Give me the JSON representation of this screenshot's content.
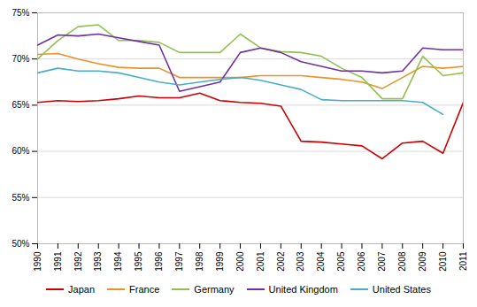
{
  "chart_data": {
    "type": "line",
    "x": [
      1990,
      1991,
      1992,
      1993,
      1994,
      1995,
      1996,
      1997,
      1998,
      1999,
      2000,
      2001,
      2002,
      2003,
      2004,
      2005,
      2006,
      2007,
      2008,
      2009,
      2010,
      2011
    ],
    "series": [
      {
        "name": "Japan",
        "color": "#cc0000",
        "values": [
          65.3,
          65.5,
          65.4,
          65.5,
          65.7,
          66.0,
          65.8,
          65.8,
          66.3,
          65.5,
          65.3,
          65.2,
          64.9,
          61.1,
          61.0,
          60.8,
          60.6,
          59.2,
          60.9,
          61.1,
          59.8,
          65.3
        ]
      },
      {
        "name": "France",
        "color": "#e8922a",
        "values": [
          70.5,
          70.6,
          70.0,
          69.5,
          69.1,
          69.0,
          69.0,
          68.0,
          68.0,
          68.0,
          68.0,
          68.2,
          68.2,
          68.2,
          68.0,
          67.8,
          67.5,
          66.8,
          68.0,
          69.2,
          69.0,
          69.2
        ]
      },
      {
        "name": "Germany",
        "color": "#92c050",
        "values": [
          70.0,
          72.0,
          73.5,
          73.7,
          72.0,
          72.0,
          71.8,
          70.7,
          70.7,
          70.7,
          72.7,
          71.2,
          70.8,
          70.7,
          70.3,
          69.0,
          68.0,
          65.7,
          65.7,
          70.3,
          68.2,
          68.5
        ]
      },
      {
        "name": "United Kingdom",
        "color": "#7030a0",
        "values": [
          71.5,
          72.6,
          72.5,
          72.7,
          72.3,
          71.9,
          71.5,
          66.5,
          67.0,
          67.5,
          70.7,
          71.2,
          70.7,
          69.7,
          69.2,
          68.7,
          68.7,
          68.5,
          68.7,
          71.2,
          71.0,
          71.0
        ]
      },
      {
        "name": "United States",
        "color": "#4bacc6",
        "values": [
          68.5,
          69.0,
          68.7,
          68.7,
          68.5,
          68.0,
          67.5,
          67.2,
          67.5,
          67.8,
          68.0,
          67.7,
          67.2,
          66.7,
          65.6,
          65.5,
          65.5,
          65.5,
          65.5,
          65.3,
          64.0,
          null
        ]
      }
    ],
    "xlim": [
      1990,
      2011
    ],
    "xticks": [
      1990,
      1991,
      1992,
      1993,
      1994,
      1995,
      1996,
      1997,
      1998,
      1999,
      2000,
      2001,
      2002,
      2003,
      2004,
      2005,
      2006,
      2007,
      2008,
      2009,
      2010,
      2011
    ],
    "ylim": [
      50,
      75
    ],
    "yticks": [
      {
        "value": 50,
        "label": "50%"
      },
      {
        "value": 55,
        "label": "55%"
      },
      {
        "value": 60,
        "label": "60%"
      },
      {
        "value": 65,
        "label": "65%"
      },
      {
        "value": 70,
        "label": "70%"
      },
      {
        "value": 75,
        "label": "75%"
      }
    ],
    "grid": "y",
    "legend": "bottom"
  }
}
